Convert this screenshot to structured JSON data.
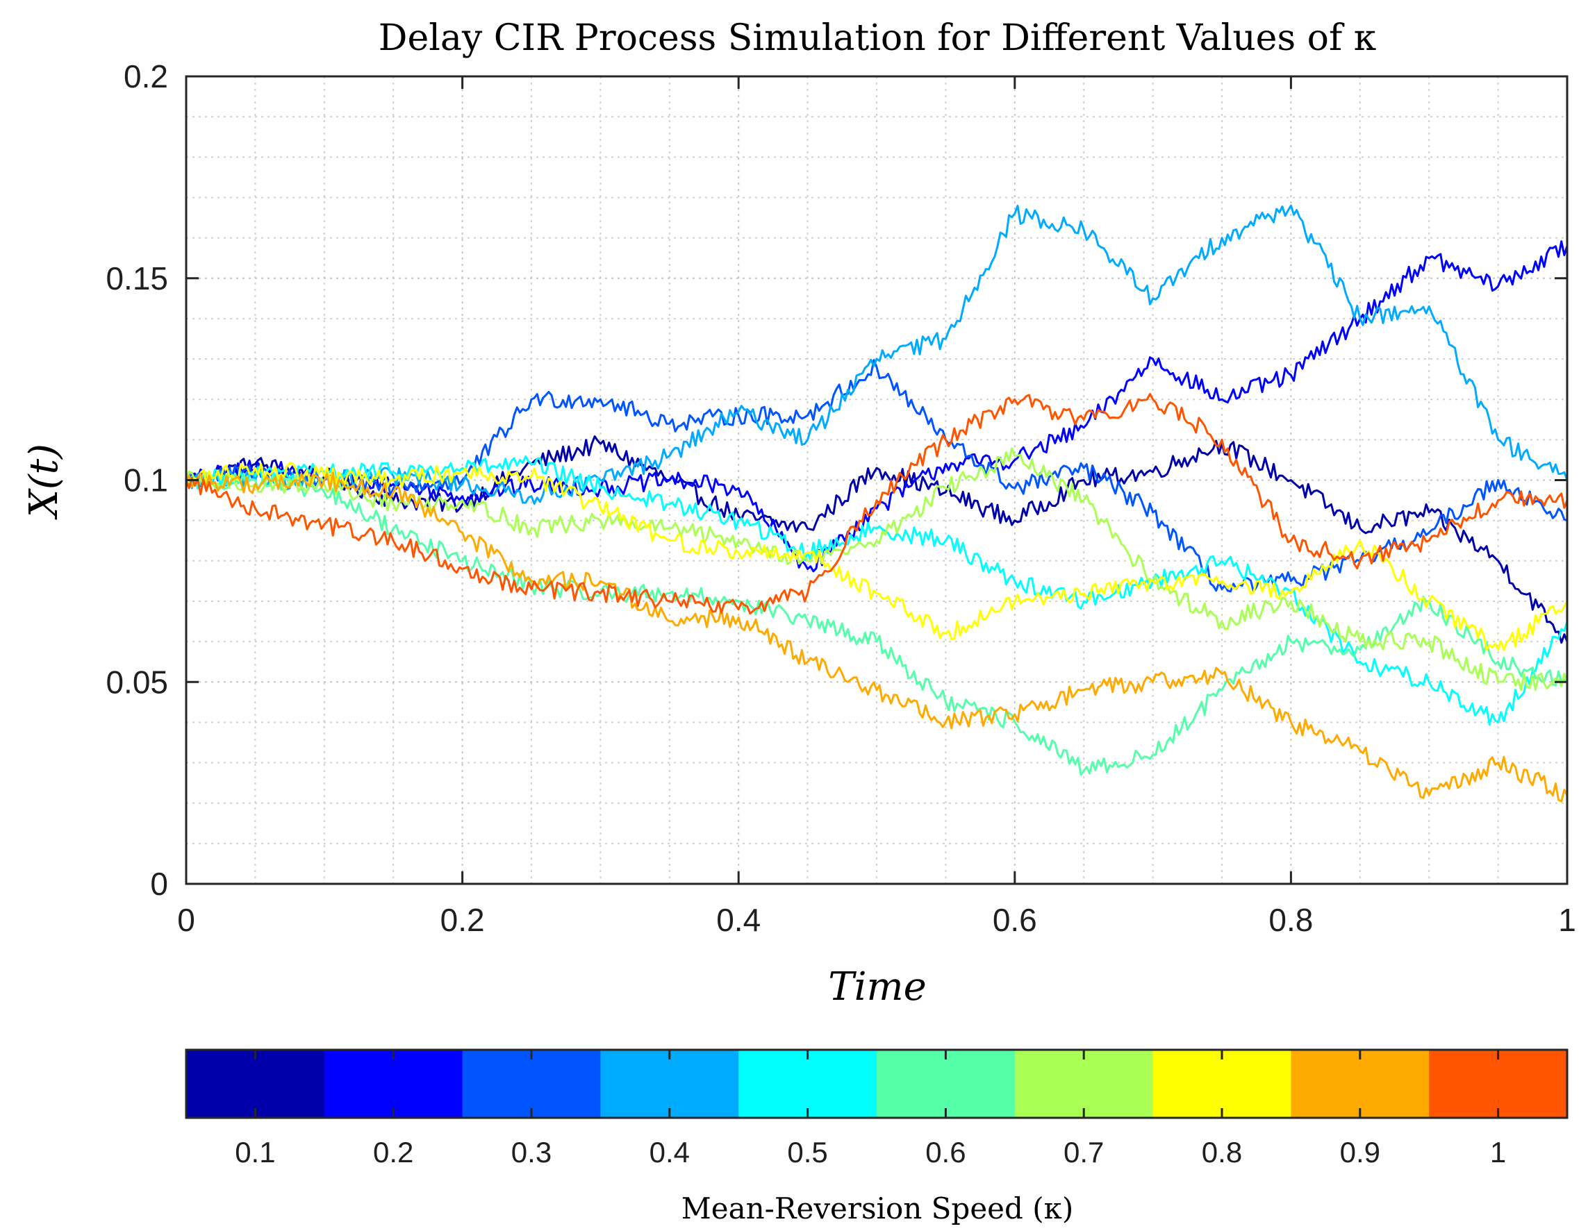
{
  "chart_data": {
    "type": "line",
    "title": "Delay CIR Process Simulation for Different Values of κ",
    "xlabel": "Time",
    "ylabel": "X(t)",
    "xlim": [
      0,
      1
    ],
    "ylim": [
      0,
      0.2
    ],
    "grid": true,
    "minor_grid": true,
    "x_ticks": [
      0,
      0.2,
      0.4,
      0.6,
      0.8,
      1
    ],
    "x_tick_labels": [
      "0",
      "0.2",
      "0.4",
      "0.6",
      "0.8",
      "1"
    ],
    "y_ticks": [
      0,
      0.05,
      0.1,
      0.15,
      0.2
    ],
    "y_tick_labels": [
      "0",
      "0.05",
      "0.1",
      "0.15",
      "0.2"
    ],
    "x_minor_ticks": [
      0.05,
      0.1,
      0.15,
      0.25,
      0.3,
      0.35,
      0.45,
      0.5,
      0.55,
      0.65,
      0.7,
      0.75,
      0.85,
      0.9,
      0.95
    ],
    "y_minor_ticks": [
      0.01,
      0.02,
      0.03,
      0.04,
      0.06,
      0.07,
      0.08,
      0.09,
      0.11,
      0.12,
      0.13,
      0.14,
      0.16,
      0.17,
      0.18,
      0.19
    ],
    "colorbar": {
      "label": "Mean-Reversion Speed (κ)",
      "location": "bottom",
      "tick_labels": [
        "0.1",
        "0.2",
        "0.3",
        "0.4",
        "0.5",
        "0.6",
        "0.7",
        "0.8",
        "0.9",
        "1"
      ],
      "colors": [
        "#0000AA",
        "#0000FF",
        "#0055FF",
        "#00AAFF",
        "#00FFFF",
        "#55FFAA",
        "#AAFF55",
        "#FFFF00",
        "#FFAA00",
        "#FF5500"
      ]
    },
    "series": [
      {
        "name": "κ = 0.1",
        "color": "#0000AA",
        "x": [
          0,
          0.05,
          0.1,
          0.15,
          0.2,
          0.25,
          0.3,
          0.35,
          0.4,
          0.45,
          0.5,
          0.55,
          0.6,
          0.65,
          0.7,
          0.75,
          0.8,
          0.85,
          0.9,
          0.95,
          1
        ],
        "y": [
          0.1,
          0.104,
          0.101,
          0.095,
          0.094,
          0.104,
          0.109,
          0.1,
          0.091,
          0.088,
          0.103,
          0.097,
          0.09,
          0.1,
          0.102,
          0.109,
          0.1,
          0.088,
          0.092,
          0.08,
          0.06
        ]
      },
      {
        "name": "κ = 0.2",
        "color": "#0000FF",
        "x": [
          0,
          0.05,
          0.1,
          0.15,
          0.2,
          0.25,
          0.3,
          0.35,
          0.4,
          0.45,
          0.5,
          0.55,
          0.6,
          0.65,
          0.7,
          0.75,
          0.8,
          0.85,
          0.9,
          0.95,
          1
        ],
        "y": [
          0.1,
          0.103,
          0.101,
          0.099,
          0.096,
          0.099,
          0.098,
          0.1,
          0.098,
          0.078,
          0.093,
          0.104,
          0.105,
          0.113,
          0.13,
          0.12,
          0.126,
          0.14,
          0.155,
          0.148,
          0.158
        ]
      },
      {
        "name": "κ = 0.3",
        "color": "#0055FF",
        "x": [
          0,
          0.05,
          0.1,
          0.15,
          0.2,
          0.25,
          0.3,
          0.35,
          0.4,
          0.45,
          0.5,
          0.55,
          0.6,
          0.65,
          0.7,
          0.75,
          0.8,
          0.85,
          0.9,
          0.95,
          1
        ],
        "y": [
          0.1,
          0.102,
          0.1,
          0.098,
          0.1,
          0.12,
          0.12,
          0.114,
          0.116,
          0.116,
          0.128,
          0.11,
          0.098,
          0.103,
          0.092,
          0.073,
          0.075,
          0.08,
          0.087,
          0.1,
          0.09
        ]
      },
      {
        "name": "κ = 0.4",
        "color": "#00AAFF",
        "x": [
          0,
          0.05,
          0.1,
          0.15,
          0.2,
          0.25,
          0.3,
          0.35,
          0.4,
          0.45,
          0.5,
          0.55,
          0.6,
          0.65,
          0.7,
          0.75,
          0.8,
          0.85,
          0.9,
          0.95,
          1
        ],
        "y": [
          0.1,
          0.1,
          0.1,
          0.101,
          0.099,
          0.096,
          0.1,
          0.106,
          0.117,
          0.11,
          0.13,
          0.135,
          0.166,
          0.162,
          0.145,
          0.16,
          0.168,
          0.14,
          0.143,
          0.11,
          0.1
        ]
      },
      {
        "name": "κ = 0.5",
        "color": "#00FFFF",
        "x": [
          0,
          0.05,
          0.1,
          0.15,
          0.2,
          0.25,
          0.3,
          0.35,
          0.4,
          0.45,
          0.5,
          0.55,
          0.6,
          0.65,
          0.7,
          0.75,
          0.8,
          0.85,
          0.9,
          0.95,
          1
        ],
        "y": [
          0.1,
          0.101,
          0.102,
          0.102,
          0.103,
          0.104,
          0.098,
          0.094,
          0.09,
          0.082,
          0.088,
          0.085,
          0.075,
          0.07,
          0.075,
          0.08,
          0.072,
          0.055,
          0.05,
          0.04,
          0.065
        ]
      },
      {
        "name": "κ = 0.6",
        "color": "#55FFAA",
        "x": [
          0,
          0.05,
          0.1,
          0.15,
          0.2,
          0.25,
          0.3,
          0.35,
          0.4,
          0.45,
          0.5,
          0.55,
          0.6,
          0.65,
          0.7,
          0.75,
          0.8,
          0.85,
          0.9,
          0.95,
          1
        ],
        "y": [
          0.1,
          0.1,
          0.097,
          0.088,
          0.08,
          0.074,
          0.072,
          0.072,
          0.07,
          0.065,
          0.06,
          0.045,
          0.04,
          0.028,
          0.032,
          0.048,
          0.06,
          0.058,
          0.07,
          0.055,
          0.05
        ]
      },
      {
        "name": "κ = 0.7",
        "color": "#AAFF55",
        "x": [
          0,
          0.05,
          0.1,
          0.15,
          0.2,
          0.25,
          0.3,
          0.35,
          0.4,
          0.45,
          0.5,
          0.55,
          0.6,
          0.65,
          0.7,
          0.75,
          0.8,
          0.85,
          0.9,
          0.95,
          1
        ],
        "y": [
          0.1,
          0.099,
          0.099,
          0.094,
          0.095,
          0.088,
          0.09,
          0.088,
          0.085,
          0.08,
          0.085,
          0.098,
          0.106,
          0.095,
          0.075,
          0.065,
          0.07,
          0.06,
          0.06,
          0.05,
          0.05
        ]
      },
      {
        "name": "κ = 0.8",
        "color": "#FFFF00",
        "x": [
          0,
          0.05,
          0.1,
          0.15,
          0.2,
          0.25,
          0.3,
          0.35,
          0.4,
          0.45,
          0.5,
          0.55,
          0.6,
          0.65,
          0.7,
          0.75,
          0.8,
          0.85,
          0.9,
          0.95,
          1
        ],
        "y": [
          0.1,
          0.103,
          0.101,
          0.1,
          0.102,
          0.101,
          0.093,
          0.085,
          0.082,
          0.082,
          0.072,
          0.062,
          0.07,
          0.072,
          0.075,
          0.075,
          0.072,
          0.085,
          0.07,
          0.058,
          0.07
        ]
      },
      {
        "name": "κ = 0.9",
        "color": "#FFAA00",
        "x": [
          0,
          0.05,
          0.1,
          0.15,
          0.2,
          0.25,
          0.3,
          0.35,
          0.4,
          0.45,
          0.5,
          0.55,
          0.6,
          0.65,
          0.7,
          0.75,
          0.8,
          0.85,
          0.9,
          0.95,
          1
        ],
        "y": [
          0.1,
          0.099,
          0.1,
          0.097,
          0.087,
          0.075,
          0.075,
          0.065,
          0.066,
          0.055,
          0.048,
          0.04,
          0.042,
          0.048,
          0.05,
          0.052,
          0.04,
          0.033,
          0.022,
          0.03,
          0.022
        ]
      },
      {
        "name": "κ = 1",
        "color": "#FF5500",
        "x": [
          0,
          0.05,
          0.1,
          0.15,
          0.2,
          0.25,
          0.3,
          0.35,
          0.4,
          0.45,
          0.5,
          0.55,
          0.6,
          0.65,
          0.7,
          0.75,
          0.8,
          0.85,
          0.9,
          0.95,
          1
        ],
        "y": [
          0.1,
          0.093,
          0.089,
          0.085,
          0.078,
          0.073,
          0.072,
          0.07,
          0.068,
          0.072,
          0.095,
          0.11,
          0.12,
          0.115,
          0.12,
          0.11,
          0.085,
          0.08,
          0.085,
          0.095,
          0.095
        ]
      }
    ]
  }
}
